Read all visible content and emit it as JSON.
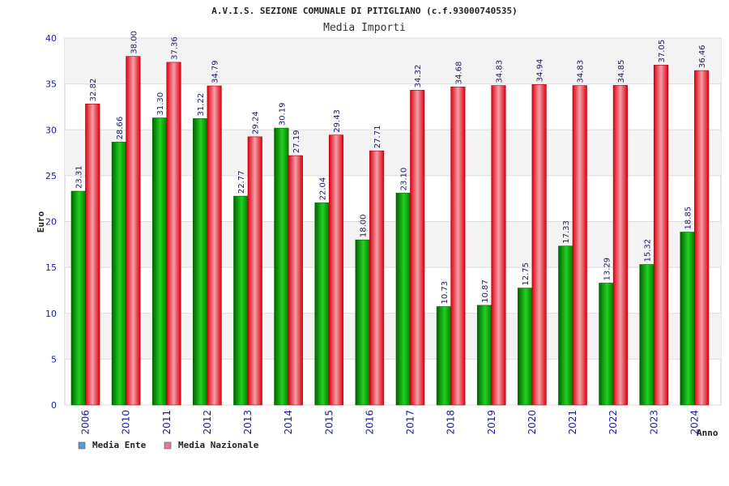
{
  "chart_data": {
    "type": "bar",
    "title": "A.V.I.S. SEZIONE COMUNALE DI PITIGLIANO (c.f.93000740535)",
    "subtitle": "Media Importi",
    "xlabel": "Anno",
    "ylabel": "Euro",
    "ylim": [
      0,
      40
    ],
    "yticks": [
      0,
      5,
      10,
      15,
      20,
      25,
      30,
      35,
      40
    ],
    "grid": true,
    "legend_position": "bottom-left",
    "categories": [
      "2006",
      "2010",
      "2011",
      "2012",
      "2013",
      "2014",
      "2015",
      "2016",
      "2017",
      "2018",
      "2019",
      "2020",
      "2021",
      "2022",
      "2023",
      "2024"
    ],
    "series": [
      {
        "name": "Media Ente",
        "legend_color": "#5b9bd5",
        "bar_color": "#00a000",
        "values": [
          23.31,
          28.66,
          31.3,
          31.22,
          22.77,
          30.19,
          22.04,
          18.0,
          23.1,
          10.73,
          10.87,
          12.75,
          17.33,
          13.29,
          15.32,
          18.85
        ],
        "labels": [
          "23.31",
          "28.66",
          "31.30",
          "31.22",
          "22.77",
          "30.19",
          "22.04",
          "18.00",
          "23.10",
          "10.73",
          "10.87",
          "12.75",
          "17.33",
          "13.29",
          "15.32",
          "18.85"
        ]
      },
      {
        "name": "Media Nazionale",
        "legend_color": "#e07ba0",
        "bar_color": "#e8202a",
        "values": [
          32.82,
          38.0,
          37.36,
          34.79,
          29.24,
          27.19,
          29.43,
          27.71,
          34.32,
          34.68,
          34.83,
          34.94,
          34.83,
          34.85,
          37.05,
          36.46
        ],
        "labels": [
          "32.82",
          "38.00",
          "37.36",
          "34.79",
          "29.24",
          "27.19",
          "29.43",
          "27.71",
          "34.32",
          "34.68",
          "34.83",
          "34.94",
          "34.83",
          "34.85",
          "37.05",
          "36.46"
        ]
      }
    ]
  }
}
